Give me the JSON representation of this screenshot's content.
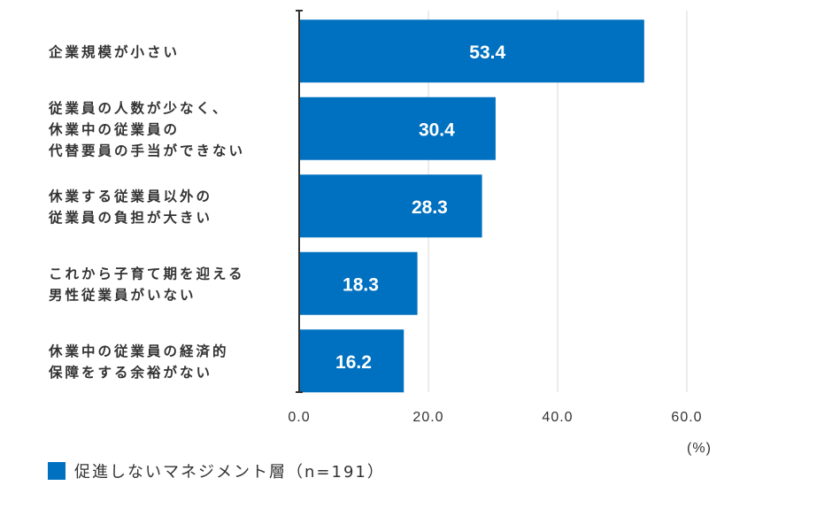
{
  "chart_data": {
    "type": "bar",
    "orientation": "horizontal",
    "categories": [
      [
        "企業規模が小さい"
      ],
      [
        "従業員の人数が少なく、",
        "休業中の従業員の",
        "代替要員の手当ができない"
      ],
      [
        "休業する従業員以外の",
        "従業員の負担が大きい"
      ],
      [
        "これから子育て期を迎える",
        "男性従業員がいない"
      ],
      [
        "休業中の従業員の経済的",
        "保障をする余裕がない"
      ]
    ],
    "series": [
      {
        "name": "促進しないマネジメント層（n=191）",
        "values": [
          53.4,
          30.4,
          28.3,
          18.3,
          16.2
        ],
        "color": "#0070c0"
      }
    ],
    "value_labels": [
      "53.4",
      "30.4",
      "28.3",
      "18.3",
      "16.2"
    ],
    "xticks": [
      0,
      20,
      40,
      60
    ],
    "xtick_labels": [
      "0.0",
      "20.0",
      "40.0",
      "60.0"
    ],
    "xlim": [
      0,
      60
    ],
    "unit_label": "(%)",
    "grid": true,
    "legend_position": "bottom-left"
  }
}
